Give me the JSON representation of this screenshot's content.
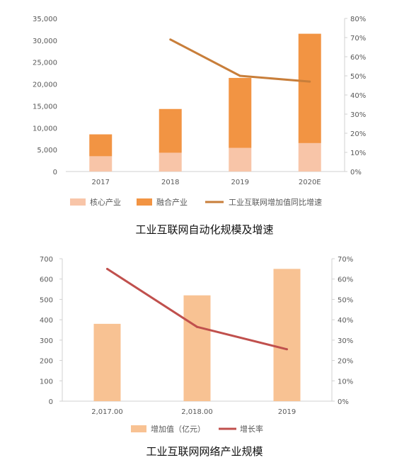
{
  "chart_data": [
    {
      "type": "bar",
      "stacked": true,
      "categories": [
        "2017",
        "2018",
        "2019",
        "2020E"
      ],
      "series": [
        {
          "name": "核心产业",
          "kind": "bar",
          "axis": "left",
          "color": "#f8c5a8",
          "values": [
            3500,
            4300,
            5400,
            6500
          ]
        },
        {
          "name": "融合产业",
          "kind": "bar",
          "axis": "left",
          "color": "#f29443",
          "values": [
            5000,
            10000,
            16000,
            25000
          ]
        },
        {
          "name": "工业互联网增加值同比增速",
          "kind": "line",
          "axis": "right",
          "color": "#c87e3a",
          "values": [
            null,
            0.69,
            0.5,
            0.47
          ]
        }
      ],
      "y_left": {
        "min": 0,
        "max": 35000,
        "ticks": [
          "0",
          "5,000",
          "10,000",
          "15,000",
          "20,000",
          "25,000",
          "30,000",
          "35,000"
        ]
      },
      "y_right": {
        "min": 0,
        "max": 0.8,
        "ticks": [
          "0%",
          "10%",
          "20%",
          "30%",
          "40%",
          "50%",
          "60%",
          "70%",
          "80%"
        ]
      },
      "grid": false,
      "legend_position": "bottom",
      "caption": "工业互联网自动化规模及增速"
    },
    {
      "type": "bar",
      "categories": [
        "2,017.00",
        "2,018.00",
        "2019"
      ],
      "series": [
        {
          "name": "增加值（亿元）",
          "kind": "bar",
          "axis": "left",
          "color": "#f8c293",
          "values": [
            380,
            520,
            650
          ]
        },
        {
          "name": "增长率",
          "kind": "line",
          "axis": "right",
          "color": "#c0504d",
          "values": [
            0.65,
            0.365,
            0.255
          ]
        }
      ],
      "y_left": {
        "min": 0,
        "max": 700,
        "ticks": [
          "0",
          "100",
          "200",
          "300",
          "400",
          "500",
          "600",
          "700"
        ]
      },
      "y_right": {
        "min": 0,
        "max": 0.7,
        "ticks": [
          "0%",
          "10%",
          "20%",
          "30%",
          "40%",
          "50%",
          "60%",
          "70%"
        ]
      },
      "grid": false,
      "legend_position": "bottom",
      "caption": "工业互联网网络产业规模"
    }
  ]
}
